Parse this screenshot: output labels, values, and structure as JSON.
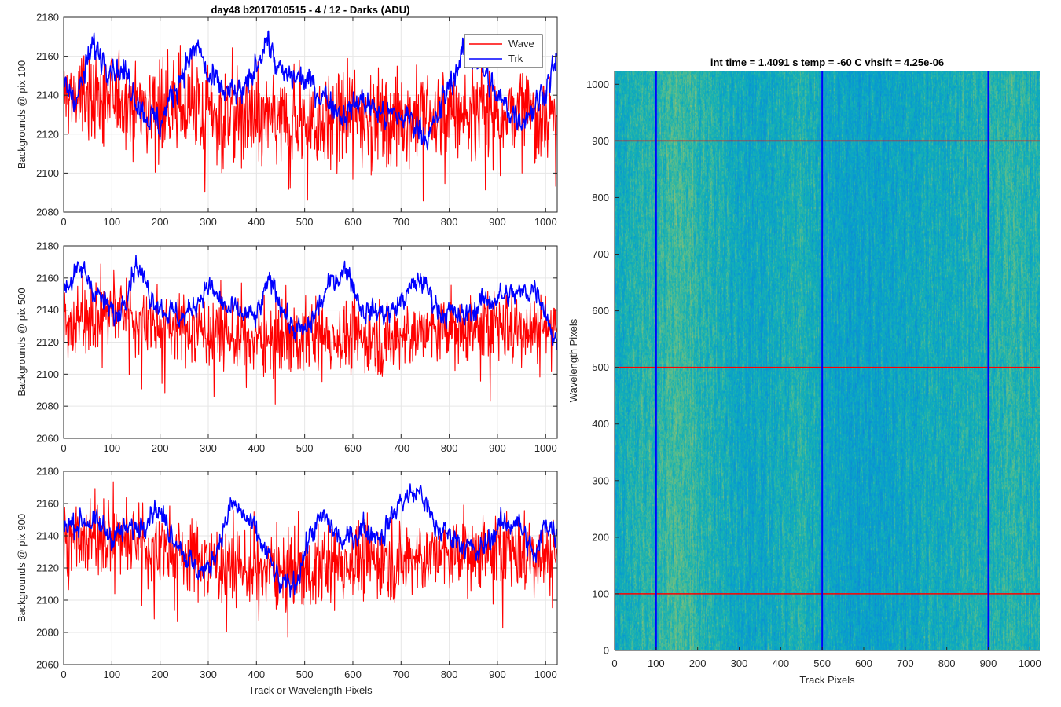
{
  "figure_title": "day48 b2017010515 - 4 / 12 - Darks (ADU)",
  "colors": {
    "wave": "#ff0000",
    "trk": "#0000ff",
    "grid": "#e6e6e6",
    "axis": "#262626"
  },
  "chart_data": [
    {
      "type": "line",
      "title": "day48 b2017010515 - 4 / 12 - Darks (ADU)",
      "xlabel": "",
      "ylabel": "Backgrounds @ pix 100",
      "xlim": [
        0,
        1024
      ],
      "ylim": [
        2080,
        2180
      ],
      "xticks": [
        0,
        100,
        200,
        300,
        400,
        500,
        600,
        700,
        800,
        900,
        1000
      ],
      "yticks": [
        2080,
        2100,
        2120,
        2140,
        2160,
        2180
      ],
      "grid": true,
      "legend": {
        "position": "top-right",
        "entries": [
          "Wave",
          "Trk"
        ]
      },
      "series": [
        {
          "name": "Wave",
          "color": "#ff0000",
          "mean": 2133,
          "spread": 12,
          "min_value": 2082,
          "max_value": 2168,
          "trend": [
            [
              0,
              2140
            ],
            [
              100,
              2138
            ],
            [
              200,
              2135
            ],
            [
              300,
              2130
            ],
            [
              400,
              2128
            ],
            [
              500,
              2126
            ],
            [
              600,
              2130
            ],
            [
              700,
              2128
            ],
            [
              800,
              2130
            ],
            [
              900,
              2132
            ],
            [
              1024,
              2130
            ]
          ]
        },
        {
          "name": "Trk",
          "color": "#0000ff",
          "min_value": 2112,
          "max_value": 2178,
          "trend": [
            [
              0,
              2145
            ],
            [
              30,
              2140
            ],
            [
              60,
              2165
            ],
            [
              90,
              2158
            ],
            [
              130,
              2150
            ],
            [
              170,
              2130
            ],
            [
              200,
              2125
            ],
            [
              250,
              2155
            ],
            [
              280,
              2165
            ],
            [
              300,
              2148
            ],
            [
              350,
              2140
            ],
            [
              380,
              2142
            ],
            [
              420,
              2170
            ],
            [
              450,
              2150
            ],
            [
              500,
              2148
            ],
            [
              540,
              2140
            ],
            [
              580,
              2130
            ],
            [
              620,
              2138
            ],
            [
              660,
              2130
            ],
            [
              720,
              2128
            ],
            [
              760,
              2118
            ],
            [
              800,
              2145
            ],
            [
              830,
              2162
            ],
            [
              860,
              2158
            ],
            [
              900,
              2138
            ],
            [
              950,
              2128
            ],
            [
              980,
              2135
            ],
            [
              1000,
              2145
            ],
            [
              1024,
              2158
            ]
          ]
        }
      ]
    },
    {
      "type": "line",
      "title": "",
      "xlabel": "",
      "ylabel": "Backgrounds @ pix 500",
      "xlim": [
        0,
        1024
      ],
      "ylim": [
        2060,
        2180
      ],
      "xticks": [
        0,
        100,
        200,
        300,
        400,
        500,
        600,
        700,
        800,
        900,
        1000
      ],
      "yticks": [
        2060,
        2080,
        2100,
        2120,
        2140,
        2160,
        2180
      ],
      "grid": true,
      "series": [
        {
          "name": "Wave",
          "color": "#ff0000",
          "mean": 2126,
          "spread": 11,
          "min_value": 2078,
          "max_value": 2170,
          "trend": [
            [
              0,
              2130
            ],
            [
              100,
              2140
            ],
            [
              200,
              2130
            ],
            [
              300,
              2128
            ],
            [
              400,
              2120
            ],
            [
              500,
              2125
            ],
            [
              600,
              2122
            ],
            [
              700,
              2124
            ],
            [
              800,
              2128
            ],
            [
              900,
              2130
            ],
            [
              1024,
              2130
            ]
          ]
        },
        {
          "name": "Trk",
          "color": "#0000ff",
          "min_value": 2106,
          "max_value": 2178,
          "trend": [
            [
              0,
              2155
            ],
            [
              40,
              2165
            ],
            [
              70,
              2150
            ],
            [
              110,
              2135
            ],
            [
              150,
              2170
            ],
            [
              180,
              2150
            ],
            [
              210,
              2140
            ],
            [
              250,
              2135
            ],
            [
              300,
              2155
            ],
            [
              340,
              2140
            ],
            [
              400,
              2135
            ],
            [
              430,
              2160
            ],
            [
              470,
              2130
            ],
            [
              500,
              2125
            ],
            [
              560,
              2160
            ],
            [
              590,
              2165
            ],
            [
              620,
              2140
            ],
            [
              680,
              2138
            ],
            [
              740,
              2160
            ],
            [
              780,
              2140
            ],
            [
              830,
              2135
            ],
            [
              870,
              2145
            ],
            [
              900,
              2148
            ],
            [
              950,
              2150
            ],
            [
              980,
              2155
            ],
            [
              1000,
              2140
            ],
            [
              1024,
              2115
            ]
          ]
        }
      ]
    },
    {
      "type": "line",
      "title": "",
      "xlabel": "Track or Wavelength Pixels",
      "ylabel": "Backgrounds @ pix 900",
      "xlim": [
        0,
        1024
      ],
      "ylim": [
        2060,
        2180
      ],
      "xticks": [
        0,
        100,
        200,
        300,
        400,
        500,
        600,
        700,
        800,
        900,
        1000
      ],
      "yticks": [
        2060,
        2080,
        2100,
        2120,
        2140,
        2160,
        2180
      ],
      "grid": true,
      "series": [
        {
          "name": "Wave",
          "color": "#ff0000",
          "mean": 2130,
          "spread": 12,
          "min_value": 2070,
          "max_value": 2176,
          "trend": [
            [
              0,
              2138
            ],
            [
              100,
              2140
            ],
            [
              200,
              2132
            ],
            [
              300,
              2125
            ],
            [
              400,
              2118
            ],
            [
              500,
              2120
            ],
            [
              600,
              2124
            ],
            [
              700,
              2126
            ],
            [
              800,
              2128
            ],
            [
              900,
              2132
            ],
            [
              1024,
              2128
            ]
          ]
        },
        {
          "name": "Trk",
          "color": "#0000ff",
          "min_value": 2100,
          "max_value": 2175,
          "trend": [
            [
              0,
              2145
            ],
            [
              50,
              2150
            ],
            [
              100,
              2140
            ],
            [
              150,
              2145
            ],
            [
              190,
              2158
            ],
            [
              230,
              2140
            ],
            [
              270,
              2120
            ],
            [
              300,
              2118
            ],
            [
              350,
              2160
            ],
            [
              380,
              2150
            ],
            [
              420,
              2130
            ],
            [
              450,
              2108
            ],
            [
              480,
              2110
            ],
            [
              510,
              2140
            ],
            [
              540,
              2152
            ],
            [
              580,
              2135
            ],
            [
              620,
              2145
            ],
            [
              660,
              2140
            ],
            [
              700,
              2162
            ],
            [
              740,
              2168
            ],
            [
              770,
              2145
            ],
            [
              820,
              2138
            ],
            [
              860,
              2128
            ],
            [
              900,
              2145
            ],
            [
              940,
              2150
            ],
            [
              980,
              2125
            ],
            [
              1000,
              2150
            ],
            [
              1024,
              2140
            ]
          ]
        }
      ]
    },
    {
      "type": "heatmap",
      "title": "int time = 1.4091 s    temp = -60 C    vhsift = 4.25e-06",
      "xlabel": "Track Pixels",
      "ylabel": "Wavelength Pixels",
      "xlim": [
        0,
        1024
      ],
      "ylim": [
        0,
        1024
      ],
      "xticks": [
        0,
        100,
        200,
        300,
        400,
        500,
        600,
        700,
        800,
        900,
        1000
      ],
      "yticks": [
        0,
        100,
        200,
        300,
        400,
        500,
        600,
        700,
        800,
        900,
        1000
      ],
      "colormap": "parula",
      "value_range": [
        2080,
        2180
      ],
      "column_profile": [
        [
          0,
          2132
        ],
        [
          40,
          2136
        ],
        [
          100,
          2138
        ],
        [
          150,
          2142
        ],
        [
          250,
          2134
        ],
        [
          350,
          2130
        ],
        [
          450,
          2136
        ],
        [
          520,
          2130
        ],
        [
          600,
          2128
        ],
        [
          700,
          2130
        ],
        [
          800,
          2133
        ],
        [
          880,
          2135
        ],
        [
          950,
          2138
        ],
        [
          1024,
          2136
        ]
      ],
      "vertical_lines": [
        100,
        500,
        900
      ],
      "vertical_line_color": "#0000ff",
      "horizontal_lines": [
        100,
        500,
        900
      ],
      "horizontal_line_color": "#ff0000"
    }
  ]
}
